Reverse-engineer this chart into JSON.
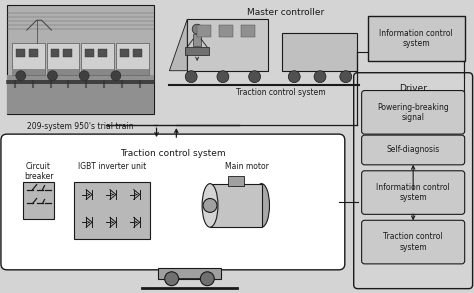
{
  "bg_color": "#d4d4d4",
  "white": "#ffffff",
  "box_gray": "#cccccc",
  "icon_gray": "#b8b8b8",
  "dark": "#1a1a1a",
  "caption_train": "209-system 950's trial train",
  "label_master": "Master controller",
  "label_traction_top": "Traction control system",
  "label_info_ctrl_top": "Information control\nsystem",
  "label_driver": "Driver",
  "label_powering": "Powering-breaking\nsignal",
  "label_self_diag": "Self-diagnosis",
  "label_info_ctrl_bot": "Information control\nsystem",
  "label_traction_ctrl": "Traction control\nsystem",
  "label_traction_box": "Traction control system",
  "label_circuit": "Circuit\nbreaker",
  "label_igbt": "IGBT inverter unit",
  "label_motor": "Main motor",
  "fs": 6.5,
  "ft": 5.5
}
